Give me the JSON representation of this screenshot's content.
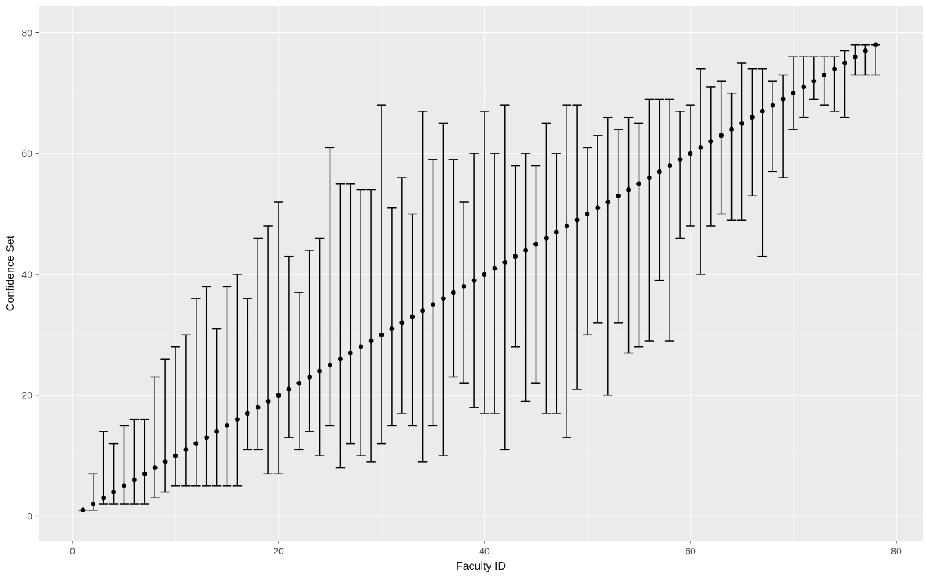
{
  "figure": {
    "panel_background": "#ebebeb",
    "outer_background": "#ffffff",
    "grid_color": "#ffffff",
    "point_color": "#000000",
    "errorbar_color": "#000000",
    "tick_label_color": "#4d4d4d",
    "tick_mark_color": "#333333",
    "axis_title_color": "#111111"
  },
  "chart_data": {
    "type": "scatter",
    "title": "",
    "xlabel": "Faculty ID",
    "ylabel": "Confidence Set",
    "x_ticks": [
      0,
      20,
      40,
      60,
      80
    ],
    "y_ticks": [
      0,
      20,
      40,
      60,
      80
    ],
    "x_minor": [
      10,
      30,
      50,
      70
    ],
    "y_minor": [
      10,
      30,
      50,
      70
    ],
    "xlim": [
      -3.3,
      82.6
    ],
    "ylim": [
      -4.1,
      84.3
    ],
    "grid": true,
    "legend": "none",
    "points": [
      {
        "id": 1,
        "estimate": 1,
        "lower": 1,
        "upper": 1
      },
      {
        "id": 2,
        "estimate": 2,
        "lower": 1,
        "upper": 7
      },
      {
        "id": 3,
        "estimate": 3,
        "lower": 2,
        "upper": 14
      },
      {
        "id": 4,
        "estimate": 4,
        "lower": 2,
        "upper": 12
      },
      {
        "id": 5,
        "estimate": 5,
        "lower": 2,
        "upper": 15
      },
      {
        "id": 6,
        "estimate": 6,
        "lower": 2,
        "upper": 16
      },
      {
        "id": 7,
        "estimate": 7,
        "lower": 2,
        "upper": 16
      },
      {
        "id": 8,
        "estimate": 8,
        "lower": 3,
        "upper": 23
      },
      {
        "id": 9,
        "estimate": 9,
        "lower": 4,
        "upper": 26
      },
      {
        "id": 10,
        "estimate": 10,
        "lower": 5,
        "upper": 28
      },
      {
        "id": 11,
        "estimate": 11,
        "lower": 5,
        "upper": 30
      },
      {
        "id": 12,
        "estimate": 12,
        "lower": 5,
        "upper": 36
      },
      {
        "id": 13,
        "estimate": 13,
        "lower": 5,
        "upper": 38
      },
      {
        "id": 14,
        "estimate": 14,
        "lower": 5,
        "upper": 31
      },
      {
        "id": 15,
        "estimate": 15,
        "lower": 5,
        "upper": 38
      },
      {
        "id": 16,
        "estimate": 16,
        "lower": 5,
        "upper": 40
      },
      {
        "id": 17,
        "estimate": 17,
        "lower": 11,
        "upper": 36
      },
      {
        "id": 18,
        "estimate": 18,
        "lower": 11,
        "upper": 46
      },
      {
        "id": 19,
        "estimate": 19,
        "lower": 7,
        "upper": 48
      },
      {
        "id": 20,
        "estimate": 20,
        "lower": 7,
        "upper": 52
      },
      {
        "id": 21,
        "estimate": 21,
        "lower": 13,
        "upper": 43
      },
      {
        "id": 22,
        "estimate": 22,
        "lower": 11,
        "upper": 37
      },
      {
        "id": 23,
        "estimate": 23,
        "lower": 14,
        "upper": 44
      },
      {
        "id": 24,
        "estimate": 24,
        "lower": 10,
        "upper": 46
      },
      {
        "id": 25,
        "estimate": 25,
        "lower": 15,
        "upper": 61
      },
      {
        "id": 26,
        "estimate": 26,
        "lower": 8,
        "upper": 55
      },
      {
        "id": 27,
        "estimate": 27,
        "lower": 12,
        "upper": 55
      },
      {
        "id": 28,
        "estimate": 28,
        "lower": 10,
        "upper": 54
      },
      {
        "id": 29,
        "estimate": 29,
        "lower": 9,
        "upper": 54
      },
      {
        "id": 30,
        "estimate": 30,
        "lower": 12,
        "upper": 68
      },
      {
        "id": 31,
        "estimate": 31,
        "lower": 15,
        "upper": 51
      },
      {
        "id": 32,
        "estimate": 32,
        "lower": 17,
        "upper": 56
      },
      {
        "id": 33,
        "estimate": 33,
        "lower": 15,
        "upper": 50
      },
      {
        "id": 34,
        "estimate": 34,
        "lower": 9,
        "upper": 67
      },
      {
        "id": 35,
        "estimate": 35,
        "lower": 15,
        "upper": 59
      },
      {
        "id": 36,
        "estimate": 36,
        "lower": 10,
        "upper": 65
      },
      {
        "id": 37,
        "estimate": 37,
        "lower": 23,
        "upper": 59
      },
      {
        "id": 38,
        "estimate": 38,
        "lower": 22,
        "upper": 52
      },
      {
        "id": 39,
        "estimate": 39,
        "lower": 18,
        "upper": 60
      },
      {
        "id": 40,
        "estimate": 40,
        "lower": 17,
        "upper": 67
      },
      {
        "id": 41,
        "estimate": 41,
        "lower": 17,
        "upper": 60
      },
      {
        "id": 42,
        "estimate": 42,
        "lower": 11,
        "upper": 68
      },
      {
        "id": 43,
        "estimate": 43,
        "lower": 28,
        "upper": 58
      },
      {
        "id": 44,
        "estimate": 44,
        "lower": 19,
        "upper": 60
      },
      {
        "id": 45,
        "estimate": 45,
        "lower": 22,
        "upper": 58
      },
      {
        "id": 46,
        "estimate": 46,
        "lower": 17,
        "upper": 65
      },
      {
        "id": 47,
        "estimate": 47,
        "lower": 17,
        "upper": 60
      },
      {
        "id": 48,
        "estimate": 48,
        "lower": 13,
        "upper": 68
      },
      {
        "id": 49,
        "estimate": 49,
        "lower": 21,
        "upper": 68
      },
      {
        "id": 50,
        "estimate": 50,
        "lower": 30,
        "upper": 61
      },
      {
        "id": 51,
        "estimate": 51,
        "lower": 32,
        "upper": 63
      },
      {
        "id": 52,
        "estimate": 52,
        "lower": 20,
        "upper": 66
      },
      {
        "id": 53,
        "estimate": 53,
        "lower": 32,
        "upper": 64
      },
      {
        "id": 54,
        "estimate": 54,
        "lower": 27,
        "upper": 66
      },
      {
        "id": 55,
        "estimate": 55,
        "lower": 28,
        "upper": 65
      },
      {
        "id": 56,
        "estimate": 56,
        "lower": 29,
        "upper": 69
      },
      {
        "id": 57,
        "estimate": 57,
        "lower": 39,
        "upper": 69
      },
      {
        "id": 58,
        "estimate": 58,
        "lower": 29,
        "upper": 69
      },
      {
        "id": 59,
        "estimate": 59,
        "lower": 46,
        "upper": 67
      },
      {
        "id": 60,
        "estimate": 60,
        "lower": 48,
        "upper": 68
      },
      {
        "id": 61,
        "estimate": 61,
        "lower": 40,
        "upper": 74
      },
      {
        "id": 62,
        "estimate": 62,
        "lower": 48,
        "upper": 71
      },
      {
        "id": 63,
        "estimate": 63,
        "lower": 50,
        "upper": 72
      },
      {
        "id": 64,
        "estimate": 64,
        "lower": 49,
        "upper": 70
      },
      {
        "id": 65,
        "estimate": 65,
        "lower": 49,
        "upper": 75
      },
      {
        "id": 66,
        "estimate": 66,
        "lower": 53,
        "upper": 74
      },
      {
        "id": 67,
        "estimate": 67,
        "lower": 43,
        "upper": 74
      },
      {
        "id": 68,
        "estimate": 68,
        "lower": 57,
        "upper": 72
      },
      {
        "id": 69,
        "estimate": 69,
        "lower": 56,
        "upper": 73
      },
      {
        "id": 70,
        "estimate": 70,
        "lower": 64,
        "upper": 76
      },
      {
        "id": 71,
        "estimate": 71,
        "lower": 66,
        "upper": 76
      },
      {
        "id": 72,
        "estimate": 72,
        "lower": 69,
        "upper": 76
      },
      {
        "id": 73,
        "estimate": 73,
        "lower": 68,
        "upper": 76
      },
      {
        "id": 74,
        "estimate": 74,
        "lower": 67,
        "upper": 76
      },
      {
        "id": 75,
        "estimate": 75,
        "lower": 66,
        "upper": 77
      },
      {
        "id": 76,
        "estimate": 76,
        "lower": 73,
        "upper": 78
      },
      {
        "id": 77,
        "estimate": 77,
        "lower": 73,
        "upper": 78
      },
      {
        "id": 78,
        "estimate": 78,
        "lower": 73,
        "upper": 78
      }
    ]
  }
}
